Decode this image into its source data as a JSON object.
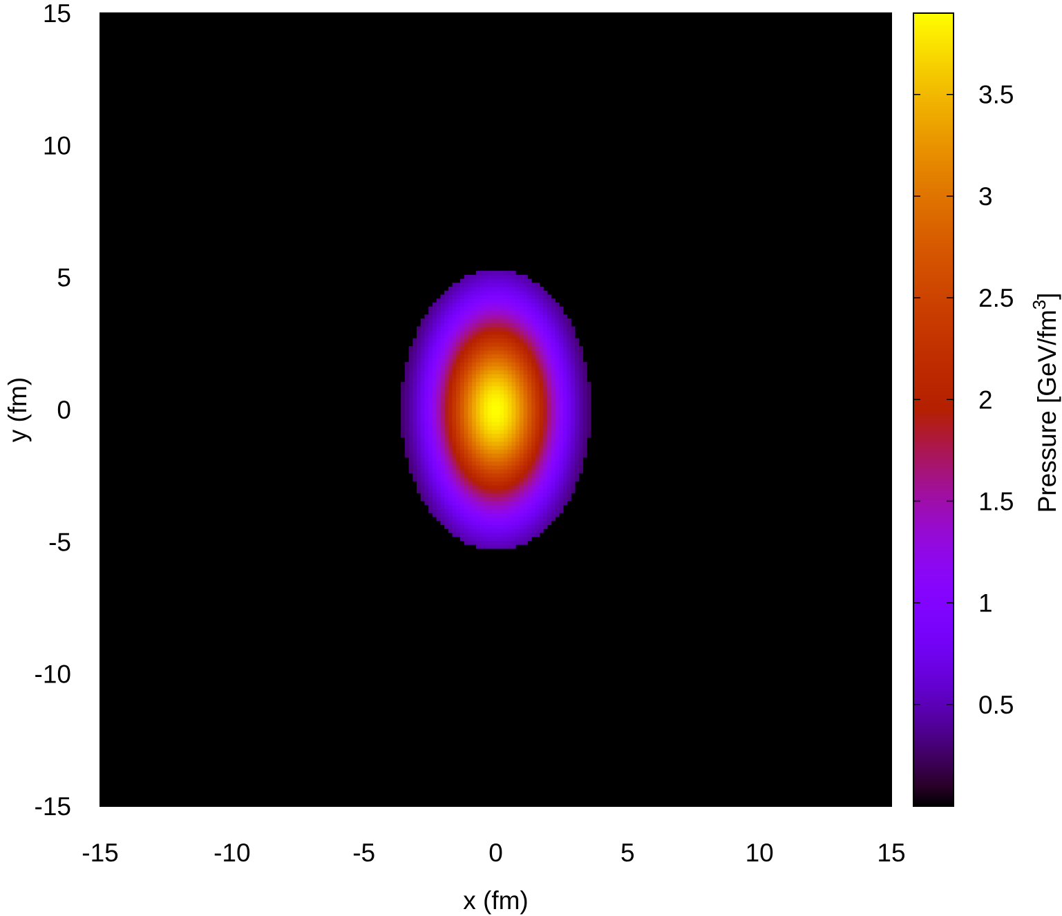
{
  "chart_data": {
    "type": "heatmap",
    "title": "",
    "xlabel": "x (fm)",
    "ylabel": "y (fm)",
    "xlim": [
      -15,
      15
    ],
    "ylim": [
      -15,
      15
    ],
    "x_ticks": [
      "-15",
      "-10",
      "-5",
      "0",
      "5",
      "10",
      "15"
    ],
    "y_ticks": [
      "-15",
      "-10",
      "-5",
      "0",
      "5",
      "10",
      "15"
    ],
    "x_tick_values": [
      -15,
      -10,
      -5,
      0,
      5,
      10,
      15
    ],
    "y_tick_values": [
      -15,
      -10,
      -5,
      0,
      5,
      10,
      15
    ],
    "colorbar": {
      "label_main": "Pressure [GeV/fm",
      "label_sup": "3",
      "label_end": "]",
      "range": [
        0,
        3.9
      ],
      "ticks": [
        "0.5",
        "1",
        "1.5",
        "2",
        "2.5",
        "3",
        "3.5"
      ],
      "tick_values": [
        0.5,
        1,
        1.5,
        2,
        2.5,
        3,
        3.5
      ],
      "palette": "black-purple-red-orange-yellow"
    },
    "field": {
      "center": [
        0,
        0
      ],
      "peak_value": 3.9,
      "sigma_x": 1.55,
      "sigma_y": 2.55,
      "cutoff_radius_x": 3.6,
      "cutoff_radius_y": 5.3,
      "description_values": "Gaussian-like elliptical pressure profile centered at origin, elongated along y"
    },
    "grid": false,
    "legend": "none"
  }
}
